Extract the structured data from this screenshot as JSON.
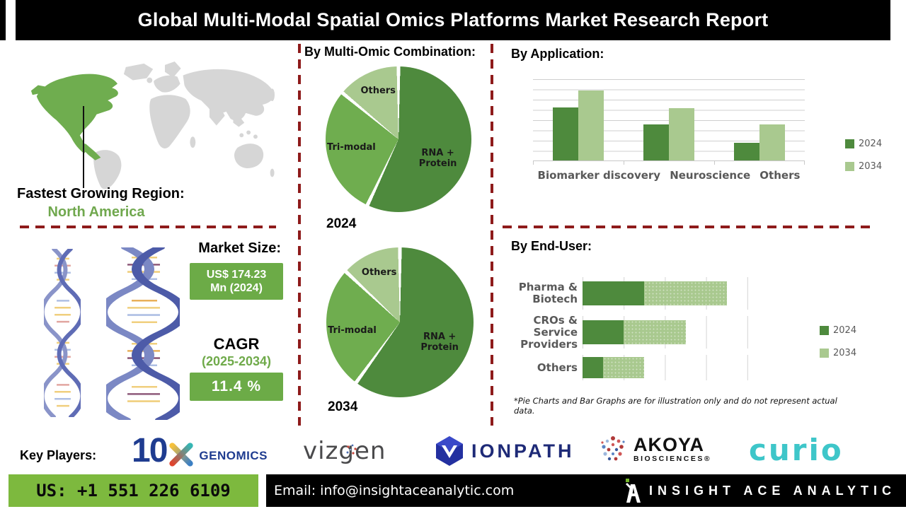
{
  "header": {
    "title": "Global Multi-Modal Spatial Omics Platforms Market Research Report"
  },
  "map": {
    "region_label": "Fastest Growing Region:",
    "region_value": "North America"
  },
  "market": {
    "size_label": "Market Size:",
    "size_value_line1": "US$ 174.23",
    "size_value_line2": "Mn (2024)",
    "cagr_label": "CAGR",
    "cagr_period": "(2025-2034)",
    "cagr_value": "11.4 %"
  },
  "sections": {
    "combination_title": "By Multi-Omic Combination:",
    "application_title": "By Application:",
    "end_user_title": "By End-User:"
  },
  "note": "*Pie Charts and Bar Graphs are for illustration only and do not represent actual data.",
  "key_players": {
    "label": "Key Players:",
    "tenx_num": "10",
    "tenx_word": "GENOMICS",
    "vizgen": "vizgen",
    "ionpath": "IONPATH",
    "akoya": "AKOYA",
    "akoya_sub": "BIOSCIENCES®",
    "curio": "curio"
  },
  "footer": {
    "phone": "US: +1 551 226 6109",
    "email": "Email: info@insightaceanalytic.com",
    "brand": "INSIGHT ACE ANALYTIC"
  },
  "colors": {
    "green_dark": "#4e8a3d",
    "green_mid": "#6fad4f",
    "green_light": "#a9c98f",
    "box_green": "#6cab47",
    "footer_green": "#7db93e",
    "accent_text_green": "#70a84e",
    "dash_red": "#8e1b1b",
    "navy": "#1f3c90",
    "teal": "#3ec6c9",
    "label_gray": "#595959"
  },
  "chart_data": [
    {
      "id": "combination_2024",
      "type": "pie",
      "title": "2024",
      "labels": [
        "RNA + Protein",
        "Tri-modal",
        "Others"
      ],
      "values": [
        57,
        29,
        14
      ],
      "colors": [
        "#4e8a3d",
        "#6fad4f",
        "#a9c98f"
      ],
      "unit": "percent share (illustrative)",
      "legend_position": "none"
    },
    {
      "id": "combination_2034",
      "type": "pie",
      "title": "2034",
      "labels": [
        "RNA + Protein",
        "Tri-modal",
        "Others"
      ],
      "values": [
        60,
        27,
        13
      ],
      "colors": [
        "#4e8a3d",
        "#6fad4f",
        "#a9c98f"
      ],
      "unit": "percent share (illustrative)",
      "legend_position": "none"
    },
    {
      "id": "application",
      "type": "bar",
      "title": "By Application:",
      "categories": [
        "Biomarker discovery",
        "Neuroscience",
        "Others"
      ],
      "series": [
        {
          "name": "2024",
          "color": "#4e8a3d",
          "values": [
            65,
            44,
            22
          ]
        },
        {
          "name": "2034",
          "color": "#a9c98f",
          "values": [
            86,
            64,
            44
          ]
        }
      ],
      "ylim": [
        0,
        100
      ],
      "grid": true,
      "legend_position": "right",
      "values_are": "illustrative units"
    },
    {
      "id": "end_user",
      "type": "stacked-bar-horizontal",
      "title": "By End-User:",
      "categories": [
        "Pharma & Biotech",
        "CROs & Service Providers",
        "Others"
      ],
      "series": [
        {
          "name": "2024",
          "color": "#4e8a3d",
          "values": [
            1.5,
            1.0,
            0.5
          ]
        },
        {
          "name": "2034",
          "color": "#a9c98f",
          "values": [
            2.0,
            1.5,
            1.0
          ]
        }
      ],
      "xlim": [
        0,
        4.5
      ],
      "grid": true,
      "legend_position": "right",
      "values_are": "illustrative units"
    }
  ]
}
